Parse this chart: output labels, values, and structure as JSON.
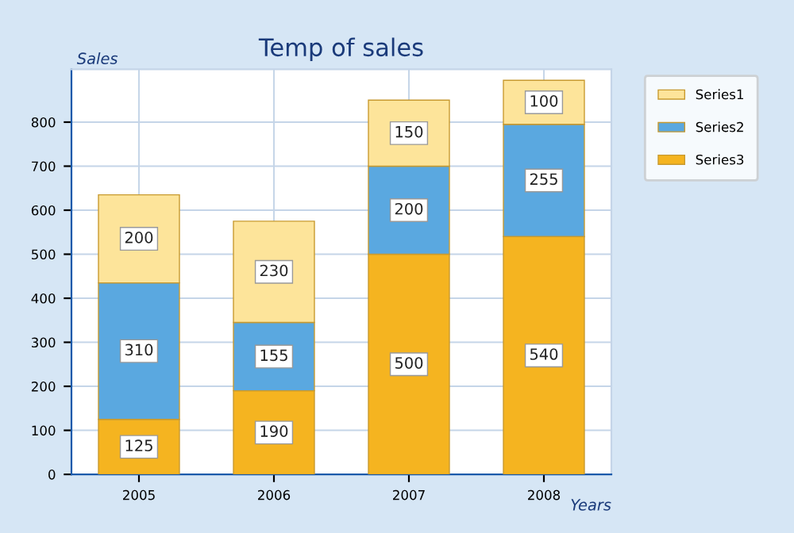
{
  "chart_data": {
    "type": "bar",
    "title": "Temp of sales",
    "xlabel": "Years",
    "ylabel": "Sales",
    "categories": [
      "2005",
      "2006",
      "2007",
      "2008"
    ],
    "stacked": true,
    "series": [
      {
        "name": "Series3",
        "color": "#f5b420",
        "values": [
          125,
          190,
          500,
          540
        ]
      },
      {
        "name": "Series2",
        "color": "#5aa8e0",
        "values": [
          310,
          155,
          200,
          255
        ]
      },
      {
        "name": "Series1",
        "color": "#fde49a",
        "values": [
          200,
          230,
          150,
          100
        ]
      }
    ],
    "ylim": [
      0,
      920
    ],
    "yticks": [
      0,
      100,
      200,
      300,
      400,
      500,
      600,
      700,
      800
    ],
    "grid": true,
    "legend": "right",
    "data_labels": true
  }
}
